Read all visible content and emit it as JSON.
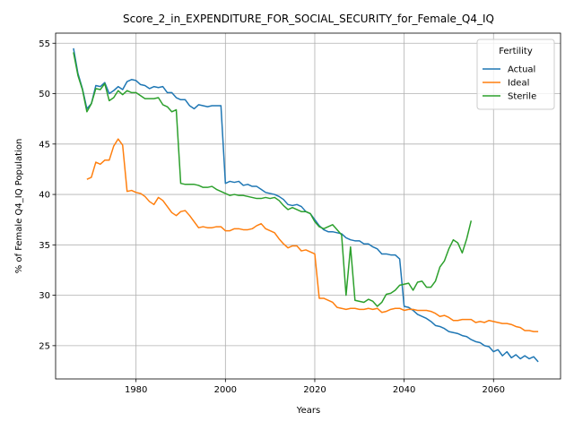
{
  "chart_data": {
    "type": "line",
    "title": "Score_2_in_EXPENDITURE_FOR_SOCIAL_SECURITY_for_Female_Q4_IQ",
    "xlabel": "Years",
    "ylabel": "% of Female Q4_IQ Population",
    "xlim": [
      1962,
      2075
    ],
    "ylim": [
      21.7,
      56.0
    ],
    "xticks": [
      1980,
      2000,
      2020,
      2040,
      2060
    ],
    "yticks": [
      25,
      30,
      35,
      40,
      45,
      50,
      55
    ],
    "grid": true,
    "legend": {
      "title": "Fertility",
      "position": "top-right"
    },
    "series": [
      {
        "name": "Actual",
        "color": "#1f77b4",
        "points": [
          [
            1966,
            54.5
          ],
          [
            1967,
            52.0
          ],
          [
            1968,
            50.5
          ],
          [
            1969,
            48.5
          ],
          [
            1970,
            49.0
          ],
          [
            1971,
            50.8
          ],
          [
            1972,
            50.7
          ],
          [
            1973,
            51.1
          ],
          [
            1974,
            50.0
          ],
          [
            1975,
            50.3
          ],
          [
            1976,
            50.7
          ],
          [
            1977,
            50.4
          ],
          [
            1978,
            51.2
          ],
          [
            1979,
            51.4
          ],
          [
            1980,
            51.3
          ],
          [
            1981,
            50.9
          ],
          [
            1982,
            50.8
          ],
          [
            1983,
            50.5
          ],
          [
            1984,
            50.7
          ],
          [
            1985,
            50.6
          ],
          [
            1986,
            50.7
          ],
          [
            1987,
            50.1
          ],
          [
            1988,
            50.1
          ],
          [
            1989,
            49.6
          ],
          [
            1990,
            49.4
          ],
          [
            1991,
            49.4
          ],
          [
            1992,
            48.8
          ],
          [
            1993,
            48.5
          ],
          [
            1994,
            48.9
          ],
          [
            1995,
            48.8
          ],
          [
            1996,
            48.7
          ],
          [
            1997,
            48.8
          ],
          [
            1998,
            48.8
          ],
          [
            1999,
            48.8
          ],
          [
            2000,
            41.1
          ],
          [
            2001,
            41.3
          ],
          [
            2002,
            41.2
          ],
          [
            2003,
            41.3
          ],
          [
            2004,
            40.9
          ],
          [
            2005,
            41.0
          ],
          [
            2006,
            40.8
          ],
          [
            2007,
            40.8
          ],
          [
            2008,
            40.5
          ],
          [
            2009,
            40.2
          ],
          [
            2010,
            40.1
          ],
          [
            2011,
            40.0
          ],
          [
            2012,
            39.8
          ],
          [
            2013,
            39.5
          ],
          [
            2014,
            39.0
          ],
          [
            2015,
            38.9
          ],
          [
            2016,
            39.0
          ],
          [
            2017,
            38.8
          ],
          [
            2018,
            38.3
          ],
          [
            2019,
            38.1
          ],
          [
            2020,
            37.5
          ],
          [
            2021,
            36.9
          ],
          [
            2022,
            36.5
          ],
          [
            2023,
            36.3
          ],
          [
            2024,
            36.3
          ],
          [
            2025,
            36.2
          ],
          [
            2026,
            36.1
          ],
          [
            2027,
            35.7
          ],
          [
            2028,
            35.5
          ],
          [
            2029,
            35.4
          ],
          [
            2030,
            35.4
          ],
          [
            2031,
            35.1
          ],
          [
            2032,
            35.1
          ],
          [
            2033,
            34.8
          ],
          [
            2034,
            34.6
          ],
          [
            2035,
            34.1
          ],
          [
            2036,
            34.1
          ],
          [
            2037,
            34.0
          ],
          [
            2038,
            34.0
          ],
          [
            2039,
            33.6
          ],
          [
            2040,
            28.9
          ],
          [
            2041,
            28.8
          ],
          [
            2042,
            28.5
          ],
          [
            2043,
            28.1
          ],
          [
            2044,
            27.9
          ],
          [
            2045,
            27.7
          ],
          [
            2046,
            27.4
          ],
          [
            2047,
            27.0
          ],
          [
            2048,
            26.9
          ],
          [
            2049,
            26.7
          ],
          [
            2050,
            26.4
          ],
          [
            2051,
            26.3
          ],
          [
            2052,
            26.2
          ],
          [
            2053,
            26.0
          ],
          [
            2054,
            25.9
          ],
          [
            2055,
            25.6
          ],
          [
            2056,
            25.4
          ],
          [
            2057,
            25.3
          ],
          [
            2058,
            25.0
          ],
          [
            2059,
            24.9
          ],
          [
            2060,
            24.4
          ],
          [
            2061,
            24.6
          ],
          [
            2062,
            24.0
          ],
          [
            2063,
            24.4
          ],
          [
            2064,
            23.8
          ],
          [
            2065,
            24.1
          ],
          [
            2066,
            23.7
          ],
          [
            2067,
            24.0
          ],
          [
            2068,
            23.7
          ],
          [
            2069,
            23.9
          ],
          [
            2070,
            23.4
          ]
        ]
      },
      {
        "name": "Ideal",
        "color": "#ff7f0e",
        "points": [
          [
            1969,
            41.5
          ],
          [
            1970,
            41.7
          ],
          [
            1971,
            43.2
          ],
          [
            1972,
            43.0
          ],
          [
            1973,
            43.4
          ],
          [
            1974,
            43.4
          ],
          [
            1975,
            44.8
          ],
          [
            1976,
            45.5
          ],
          [
            1977,
            44.9
          ],
          [
            1978,
            40.3
          ],
          [
            1979,
            40.4
          ],
          [
            1980,
            40.2
          ],
          [
            1981,
            40.1
          ],
          [
            1982,
            39.8
          ],
          [
            1983,
            39.3
          ],
          [
            1984,
            39.0
          ],
          [
            1985,
            39.7
          ],
          [
            1986,
            39.4
          ],
          [
            1987,
            38.8
          ],
          [
            1988,
            38.2
          ],
          [
            1989,
            37.9
          ],
          [
            1990,
            38.3
          ],
          [
            1991,
            38.4
          ],
          [
            1992,
            37.9
          ],
          [
            1993,
            37.3
          ],
          [
            1994,
            36.7
          ],
          [
            1995,
            36.8
          ],
          [
            1996,
            36.7
          ],
          [
            1997,
            36.7
          ],
          [
            1998,
            36.8
          ],
          [
            1999,
            36.8
          ],
          [
            2000,
            36.4
          ],
          [
            2001,
            36.4
          ],
          [
            2002,
            36.6
          ],
          [
            2003,
            36.6
          ],
          [
            2004,
            36.5
          ],
          [
            2005,
            36.5
          ],
          [
            2006,
            36.6
          ],
          [
            2007,
            36.9
          ],
          [
            2008,
            37.1
          ],
          [
            2009,
            36.6
          ],
          [
            2010,
            36.4
          ],
          [
            2011,
            36.2
          ],
          [
            2012,
            35.6
          ],
          [
            2013,
            35.1
          ],
          [
            2014,
            34.7
          ],
          [
            2015,
            34.9
          ],
          [
            2016,
            34.9
          ],
          [
            2017,
            34.4
          ],
          [
            2018,
            34.5
          ],
          [
            2019,
            34.3
          ],
          [
            2020,
            34.1
          ],
          [
            2021,
            29.7
          ],
          [
            2022,
            29.7
          ],
          [
            2023,
            29.5
          ],
          [
            2024,
            29.3
          ],
          [
            2025,
            28.8
          ],
          [
            2026,
            28.7
          ],
          [
            2027,
            28.6
          ],
          [
            2028,
            28.7
          ],
          [
            2029,
            28.7
          ],
          [
            2030,
            28.6
          ],
          [
            2031,
            28.6
          ],
          [
            2032,
            28.7
          ],
          [
            2033,
            28.6
          ],
          [
            2034,
            28.7
          ],
          [
            2035,
            28.3
          ],
          [
            2036,
            28.4
          ],
          [
            2037,
            28.6
          ],
          [
            2038,
            28.7
          ],
          [
            2039,
            28.7
          ],
          [
            2040,
            28.5
          ],
          [
            2041,
            28.6
          ],
          [
            2042,
            28.6
          ],
          [
            2043,
            28.5
          ],
          [
            2044,
            28.5
          ],
          [
            2045,
            28.5
          ],
          [
            2046,
            28.4
          ],
          [
            2047,
            28.2
          ],
          [
            2048,
            27.9
          ],
          [
            2049,
            28.0
          ],
          [
            2050,
            27.8
          ],
          [
            2051,
            27.5
          ],
          [
            2052,
            27.5
          ],
          [
            2053,
            27.6
          ],
          [
            2054,
            27.6
          ],
          [
            2055,
            27.6
          ],
          [
            2056,
            27.3
          ],
          [
            2057,
            27.4
          ],
          [
            2058,
            27.3
          ],
          [
            2059,
            27.5
          ],
          [
            2060,
            27.4
          ],
          [
            2061,
            27.3
          ],
          [
            2062,
            27.2
          ],
          [
            2063,
            27.2
          ],
          [
            2064,
            27.1
          ],
          [
            2065,
            26.9
          ],
          [
            2066,
            26.8
          ],
          [
            2067,
            26.5
          ],
          [
            2068,
            26.5
          ],
          [
            2069,
            26.4
          ],
          [
            2070,
            26.4
          ]
        ]
      },
      {
        "name": "Sterile",
        "color": "#2ca02c",
        "points": [
          [
            1966,
            54.1
          ],
          [
            1967,
            51.8
          ],
          [
            1968,
            50.4
          ],
          [
            1969,
            48.2
          ],
          [
            1970,
            49.0
          ],
          [
            1971,
            50.5
          ],
          [
            1972,
            50.4
          ],
          [
            1973,
            51.0
          ],
          [
            1974,
            49.3
          ],
          [
            1975,
            49.6
          ],
          [
            1976,
            50.3
          ],
          [
            1977,
            49.9
          ],
          [
            1978,
            50.3
          ],
          [
            1979,
            50.1
          ],
          [
            1980,
            50.1
          ],
          [
            1981,
            49.8
          ],
          [
            1982,
            49.5
          ],
          [
            1983,
            49.5
          ],
          [
            1984,
            49.5
          ],
          [
            1985,
            49.6
          ],
          [
            1986,
            48.9
          ],
          [
            1987,
            48.7
          ],
          [
            1988,
            48.2
          ],
          [
            1989,
            48.4
          ],
          [
            1990,
            41.1
          ],
          [
            1991,
            41.0
          ],
          [
            1992,
            41.0
          ],
          [
            1993,
            41.0
          ],
          [
            1994,
            40.9
          ],
          [
            1995,
            40.7
          ],
          [
            1996,
            40.7
          ],
          [
            1997,
            40.8
          ],
          [
            1998,
            40.5
          ],
          [
            1999,
            40.3
          ],
          [
            2000,
            40.1
          ],
          [
            2001,
            39.9
          ],
          [
            2002,
            40.0
          ],
          [
            2003,
            39.9
          ],
          [
            2004,
            39.9
          ],
          [
            2005,
            39.8
          ],
          [
            2006,
            39.7
          ],
          [
            2007,
            39.6
          ],
          [
            2008,
            39.6
          ],
          [
            2009,
            39.7
          ],
          [
            2010,
            39.6
          ],
          [
            2011,
            39.7
          ],
          [
            2012,
            39.4
          ],
          [
            2013,
            38.9
          ],
          [
            2014,
            38.5
          ],
          [
            2015,
            38.7
          ],
          [
            2016,
            38.5
          ],
          [
            2017,
            38.3
          ],
          [
            2018,
            38.3
          ],
          [
            2019,
            38.1
          ],
          [
            2020,
            37.3
          ],
          [
            2021,
            36.8
          ],
          [
            2022,
            36.6
          ],
          [
            2023,
            36.8
          ],
          [
            2024,
            37.0
          ],
          [
            2025,
            36.5
          ],
          [
            2026,
            36.0
          ],
          [
            2027,
            30.0
          ],
          [
            2028,
            34.8
          ],
          [
            2029,
            29.5
          ],
          [
            2030,
            29.4
          ],
          [
            2031,
            29.3
          ],
          [
            2032,
            29.6
          ],
          [
            2033,
            29.4
          ],
          [
            2034,
            28.9
          ],
          [
            2035,
            29.3
          ],
          [
            2036,
            30.1
          ],
          [
            2037,
            30.2
          ],
          [
            2038,
            30.5
          ],
          [
            2039,
            31.0
          ],
          [
            2040,
            31.1
          ],
          [
            2041,
            31.2
          ],
          [
            2042,
            30.5
          ],
          [
            2043,
            31.3
          ],
          [
            2044,
            31.4
          ],
          [
            2045,
            30.8
          ],
          [
            2046,
            30.8
          ],
          [
            2047,
            31.4
          ],
          [
            2048,
            32.8
          ],
          [
            2049,
            33.4
          ],
          [
            2050,
            34.6
          ],
          [
            2051,
            35.5
          ],
          [
            2052,
            35.2
          ],
          [
            2053,
            34.2
          ],
          [
            2054,
            35.6
          ],
          [
            2055,
            37.4
          ]
        ]
      }
    ]
  }
}
